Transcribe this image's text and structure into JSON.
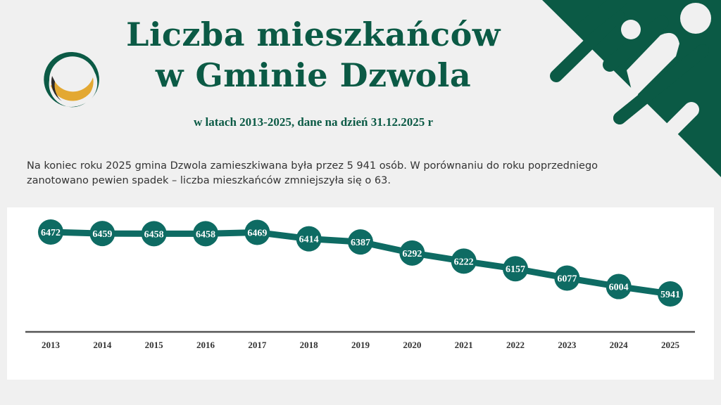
{
  "header": {
    "title_line1": "Liczba mieszkańców",
    "title_line2": "w Gminie Dzwola",
    "subtitle": "w latach 2013-2025, dane na dzień 31.12.2025 r"
  },
  "description": {
    "line1": "Na koniec roku 2025 gmina Dzwola zamieszkiwana była przez 5 941 osób. W porównaniu do roku poprzedniego",
    "line2": "zanotowano pewien spadek – liczba mieszkańców zmniejszyła się o 63."
  },
  "logo": {
    "icon": "crescent-ring-logo-icon",
    "colors": {
      "green": "#0b5a45",
      "gold": "#e3a832",
      "dark": "#2e2a2a"
    }
  },
  "decoration": {
    "icon": "diagonal-rounded-stripes-decoration",
    "color": "#0b5a45"
  },
  "colors": {
    "brand_green": "#0b5a45",
    "series_teal": "#0e6b63",
    "axis": "#555555",
    "panel_bg": "#ffffff",
    "page_bg": "#f0f0f0"
  },
  "chart_data": {
    "type": "line",
    "title": "Liczba mieszkańców w Gminie Dzwola",
    "subtitle": "w latach 2013-2025, dane na dzień 31.12.2025 r",
    "categories": [
      "2013",
      "2014",
      "2015",
      "2016",
      "2017",
      "2018",
      "2019",
      "2020",
      "2021",
      "2022",
      "2023",
      "2024",
      "2025"
    ],
    "series": [
      {
        "name": "Liczba mieszkańców",
        "values": [
          6472,
          6459,
          6458,
          6458,
          6469,
          6414,
          6387,
          6292,
          6222,
          6157,
          6077,
          6004,
          5941
        ]
      }
    ],
    "labels": [
      "6472",
      "6459",
      "6458",
      "6458",
      "6469",
      "6414",
      "6387",
      "6292",
      "6222",
      "6157",
      "6077",
      "6004",
      "5941"
    ],
    "xlabel": "",
    "ylabel": "",
    "grid": false,
    "legend": "none",
    "data_labels": "inside circular markers"
  }
}
